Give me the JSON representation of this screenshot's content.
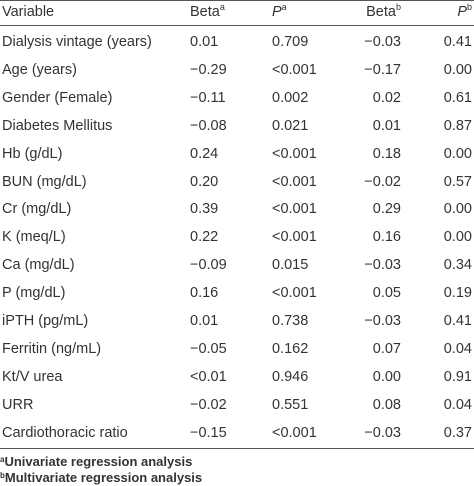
{
  "table": {
    "header": [
      {
        "text": "Variable"
      },
      {
        "text": "Beta",
        "sup": "a"
      },
      {
        "text": "P",
        "sup": "a"
      },
      {
        "text": "Beta",
        "sup": "b"
      },
      {
        "text": "P",
        "sup": "b"
      }
    ],
    "rows": [
      [
        "Dialysis vintage (years)",
        "0.01",
        "0.709",
        "−0.03",
        "0.41"
      ],
      [
        "Age (years)",
        "−0.29",
        "<0.001",
        "−0.17",
        "0.00"
      ],
      [
        "Gender (Female)",
        "−0.11",
        "0.002",
        "0.02",
        "0.61"
      ],
      [
        "Diabetes Mellitus",
        "−0.08",
        "0.021",
        "0.01",
        "0.87"
      ],
      [
        "Hb (g/dL)",
        "0.24",
        "<0.001",
        "0.18",
        "0.00"
      ],
      [
        "BUN (mg/dL)",
        "0.20",
        "<0.001",
        "−0.02",
        "0.57"
      ],
      [
        "Cr (mg/dL)",
        "0.39",
        "<0.001",
        "0.29",
        "0.00"
      ],
      [
        "K (meq/L)",
        "0.22",
        "<0.001",
        "0.16",
        "0.00"
      ],
      [
        "Ca (mg/dL)",
        "−0.09",
        "0.015",
        "−0.03",
        "0.34"
      ],
      [
        "P (mg/dL)",
        "0.16",
        "<0.001",
        "0.05",
        "0.19"
      ],
      [
        "iPTH (pg/mL)",
        "0.01",
        "0.738",
        "−0.03",
        "0.41"
      ],
      [
        "Ferritin (ng/mL)",
        "−0.05",
        "0.162",
        "0.07",
        "0.04"
      ],
      [
        "Kt/V urea",
        "<0.01",
        "0.946",
        "0.00",
        "0.91"
      ],
      [
        "URR",
        "−0.02",
        "0.551",
        "0.08",
        "0.04"
      ],
      [
        "Cardiothoracic ratio",
        "−0.15",
        "<0.001",
        "−0.03",
        "0.37"
      ]
    ]
  },
  "footnotes": [
    {
      "sup": "a",
      "text": "Univariate regression analysis"
    },
    {
      "sup": "b",
      "text": "Multivariate regression analysis"
    }
  ]
}
